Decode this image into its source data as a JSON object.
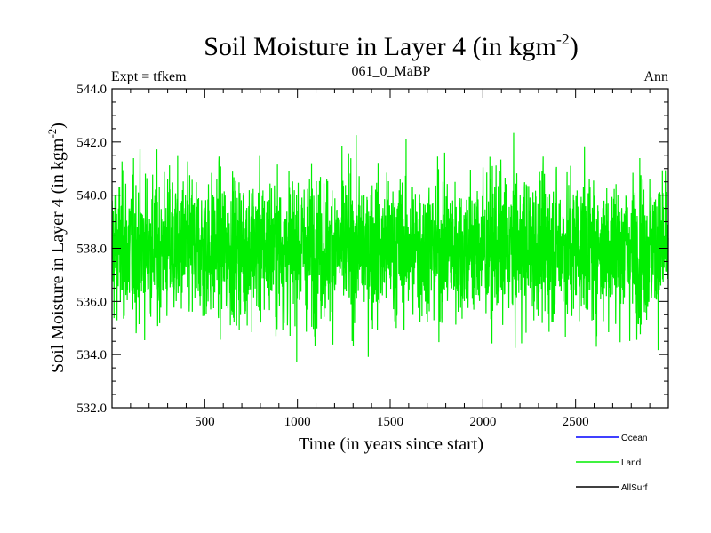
{
  "chart_data": {
    "type": "line",
    "title": "Soil Moisture in Layer 4 (in kgm",
    "title_sup": "-2",
    "title_end": ")",
    "subtitle_left": "Expt = tfkem",
    "subtitle_center": "061_0_MaBP",
    "subtitle_right": "Ann",
    "xlabel": "Time (in years since start)",
    "ylabel": "Soil Moisture in Layer 4 (in kgm",
    "ylabel_sup": "-2",
    "ylabel_end": ")",
    "xlim": [
      0,
      3000
    ],
    "ylim": [
      532.0,
      544.0
    ],
    "xticks": [
      500,
      1000,
      1500,
      2000,
      2500
    ],
    "yticks": [
      532.0,
      534.0,
      536.0,
      538.0,
      540.0,
      542.0,
      544.0
    ],
    "ytick_labels": [
      "532.0",
      "534.0",
      "536.0",
      "538.0",
      "540.0",
      "542.0",
      "544.0"
    ],
    "grid": false,
    "legend": {
      "placement": "bottom-right"
    },
    "series": [
      {
        "name": "Ocean",
        "color": "#0000ff",
        "values": []
      },
      {
        "name": "Land",
        "color": "#00ee00",
        "values": [],
        "mean": 538.0,
        "range": [
          533.0,
          543.2
        ],
        "n_points": 3000
      },
      {
        "name": "AllSurf",
        "color": "#000000",
        "values": []
      }
    ]
  }
}
